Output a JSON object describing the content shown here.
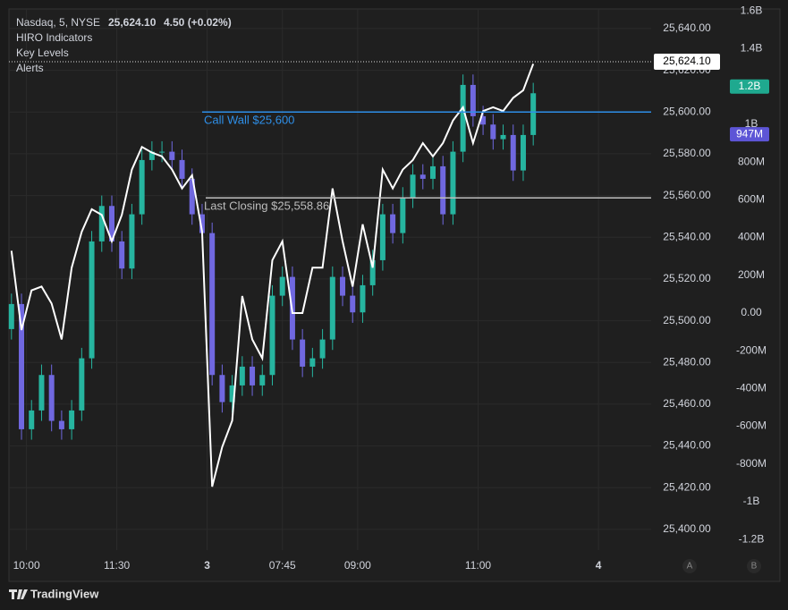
{
  "chart_data": {
    "type": "candlestick",
    "header": [
      "Nasdaq, 5, NYSE",
      "4.50 (+0.02%)"
    ],
    "indicators": [
      "HIRO Indicators",
      "Key Levels",
      "Alerts"
    ],
    "last_price": {
      "value": 25624.1,
      "label": "25,624.10"
    },
    "x": [
      0,
      2,
      4,
      6,
      8,
      10,
      12,
      14,
      16,
      18,
      20,
      22,
      24,
      26,
      28,
      30,
      32,
      34,
      36,
      38,
      40,
      42,
      44,
      46,
      48,
      50,
      52,
      54,
      56,
      58,
      60,
      62,
      64,
      66,
      68,
      70,
      72,
      74,
      76,
      78,
      80,
      82,
      84,
      86,
      88,
      90,
      92,
      94,
      96,
      98,
      100,
      102,
      104
    ],
    "open": [
      25496,
      25508,
      25448,
      25457,
      25474,
      25452,
      25448,
      25457,
      25482,
      25538,
      25555,
      25538,
      25525,
      25551,
      25577,
      25581,
      25581,
      25577,
      25568,
      25551,
      25542,
      25474,
      25461,
      25469,
      25478,
      25469,
      25474,
      25512,
      25521,
      25491,
      25478,
      25482,
      25491,
      25521,
      25512,
      25504,
      25517,
      25529,
      25551,
      25542,
      25559,
      25570,
      25568,
      25574,
      25551,
      25581,
      25613,
      25598,
      25594,
      25587,
      25589,
      25572,
      25589
    ],
    "high": [
      25513,
      25513,
      25462,
      25479,
      25479,
      25457,
      25462,
      25487,
      25543,
      25560,
      25560,
      25543,
      25556,
      25582,
      25586,
      25586,
      25586,
      25582,
      25573,
      25556,
      25547,
      25479,
      25474,
      25483,
      25483,
      25479,
      25517,
      25526,
      25526,
      25496,
      25487,
      25496,
      25526,
      25526,
      25517,
      25522,
      25534,
      25556,
      25556,
      25564,
      25575,
      25575,
      25579,
      25579,
      25586,
      25618,
      25618,
      25603,
      25599,
      25594,
      25594,
      25594,
      25614
    ],
    "low": [
      25491,
      25443,
      25443,
      25452,
      25447,
      25443,
      25443,
      25452,
      25477,
      25533,
      25533,
      25520,
      25520,
      25546,
      25572,
      25576,
      25572,
      25563,
      25546,
      25537,
      25469,
      25456,
      25456,
      25464,
      25464,
      25464,
      25469,
      25507,
      25486,
      25473,
      25473,
      25477,
      25486,
      25507,
      25499,
      25499,
      25512,
      25524,
      25537,
      25537,
      25554,
      25563,
      25563,
      25546,
      25546,
      25576,
      25593,
      25589,
      25582,
      25582,
      25567,
      25567,
      25584
    ],
    "close": [
      25508,
      25448,
      25457,
      25474,
      25452,
      25448,
      25457,
      25482,
      25538,
      25555,
      25538,
      25525,
      25551,
      25577,
      25581,
      25581,
      25577,
      25568,
      25551,
      25542,
      25474,
      25461,
      25469,
      25478,
      25469,
      25474,
      25512,
      25521,
      25491,
      25478,
      25482,
      25491,
      25521,
      25512,
      25504,
      25517,
      25529,
      25551,
      25542,
      25559,
      25570,
      25568,
      25574,
      25551,
      25581,
      25613,
      25598,
      25594,
      25587,
      25589,
      25572,
      25589,
      25609
    ],
    "up_color": "#26b5a0",
    "down_color": "#7068e0",
    "series": [
      {
        "name": "HIRO",
        "color": "#ffffff",
        "axis": "y2",
        "values": [
          330,
          -90,
          120,
          140,
          50,
          -140,
          240,
          430,
          550,
          520,
          380,
          520,
          760,
          880,
          850,
          830,
          760,
          660,
          730,
          430,
          -920,
          -710,
          -570,
          90,
          -140,
          -240,
          280,
          380,
          0,
          0,
          240,
          240,
          660,
          380,
          140,
          470,
          240,
          760,
          660,
          760,
          810,
          900,
          830,
          900,
          1020,
          1090,
          900,
          1070,
          1090,
          1070,
          1140,
          1180,
          1320
        ]
      }
    ],
    "levels": [
      {
        "label": "Call Wall $25,600",
        "value": 25600,
        "color": "#2e8fe8"
      },
      {
        "label": "Last Closing $25,558.86",
        "value": 25558.86,
        "color": "#bdbdbd"
      }
    ],
    "y2_badges": [
      {
        "value": 1200,
        "label": "1.2B",
        "color": "#1fa98f"
      },
      {
        "value": 947,
        "label": "947M",
        "color": "#5d55d6"
      }
    ],
    "xlim": [
      -0.5,
      127.5
    ],
    "xticks": [
      {
        "value": 3,
        "label": "10:00"
      },
      {
        "value": 21,
        "label": "11:30"
      },
      {
        "value": 39,
        "label": "3"
      },
      {
        "value": 54,
        "label": "07:45"
      },
      {
        "value": 69,
        "label": "09:00"
      },
      {
        "value": 93,
        "label": "11:00"
      },
      {
        "value": 117,
        "label": "4"
      }
    ],
    "ylim": [
      25390.1,
      25649.4
    ],
    "yticks": [
      {
        "value": 25400,
        "label": "25,400.00"
      },
      {
        "value": 25420,
        "label": "25,420.00"
      },
      {
        "value": 25440,
        "label": "25,440.00"
      },
      {
        "value": 25460,
        "label": "25,460.00"
      },
      {
        "value": 25480,
        "label": "25,480.00"
      },
      {
        "value": 25500,
        "label": "25,500.00"
      },
      {
        "value": 25520,
        "label": "25,520.00"
      },
      {
        "value": 25540,
        "label": "25,540.00"
      },
      {
        "value": 25560,
        "label": "25,560.00"
      },
      {
        "value": 25580,
        "label": "25,580.00"
      },
      {
        "value": 25600,
        "label": "25,600.00"
      },
      {
        "value": 25620,
        "label": "25,620.00"
      },
      {
        "value": 25640,
        "label": "25,640.00"
      }
    ],
    "y2lim": [
      -1256,
      1611
    ],
    "y2ticks": [
      {
        "value": -1200,
        "label": "-1.2B"
      },
      {
        "value": -1000,
        "label": "-1B"
      },
      {
        "value": -800,
        "label": "-800M"
      },
      {
        "value": -600,
        "label": "-600M"
      },
      {
        "value": -400,
        "label": "-400M"
      },
      {
        "value": -200,
        "label": "-200M"
      },
      {
        "value": 0,
        "label": "0.00"
      },
      {
        "value": 200,
        "label": "200M"
      },
      {
        "value": 400,
        "label": "400M"
      },
      {
        "value": 600,
        "label": "600M"
      },
      {
        "value": 800,
        "label": "800M"
      },
      {
        "value": 1000,
        "label": "1B"
      },
      {
        "value": 1200,
        "label": "1.2B"
      },
      {
        "value": 1400,
        "label": "1.4B"
      },
      {
        "value": 1600,
        "label": "1.6B"
      }
    ],
    "grid": true,
    "scale_buttons": [
      "A",
      "B"
    ],
    "brand": "TradingView"
  }
}
